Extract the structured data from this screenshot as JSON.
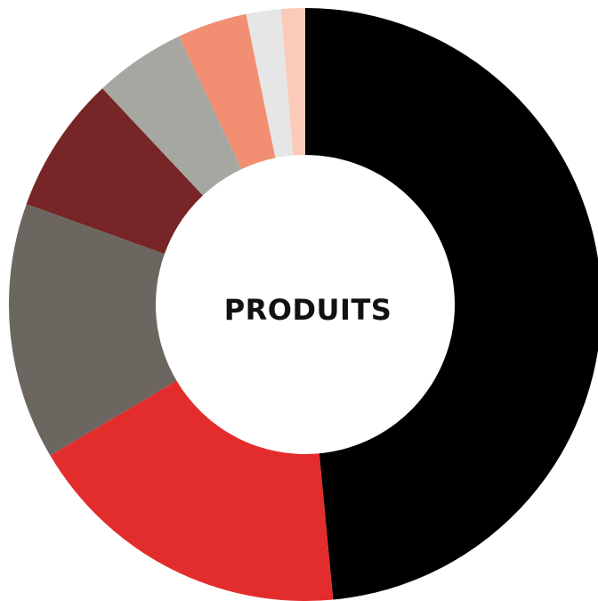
{
  "chart_data": {
    "type": "pie",
    "variant": "donut",
    "center_label": "PRODUITS",
    "start_angle_deg": 0,
    "direction": "clockwise",
    "slices": [
      {
        "value": 48.5,
        "color": "#000000"
      },
      {
        "value": 18.0,
        "color": "#e32d2d"
      },
      {
        "value": 14.0,
        "color": "#6b6760"
      },
      {
        "value": 7.5,
        "color": "#772526"
      },
      {
        "value": 5.0,
        "color": "#a7a7a1"
      },
      {
        "value": 3.8,
        "color": "#f28f73"
      },
      {
        "value": 1.9,
        "color": "#e6e6e6"
      },
      {
        "value": 1.3,
        "color": "#fbcab8"
      }
    ]
  }
}
